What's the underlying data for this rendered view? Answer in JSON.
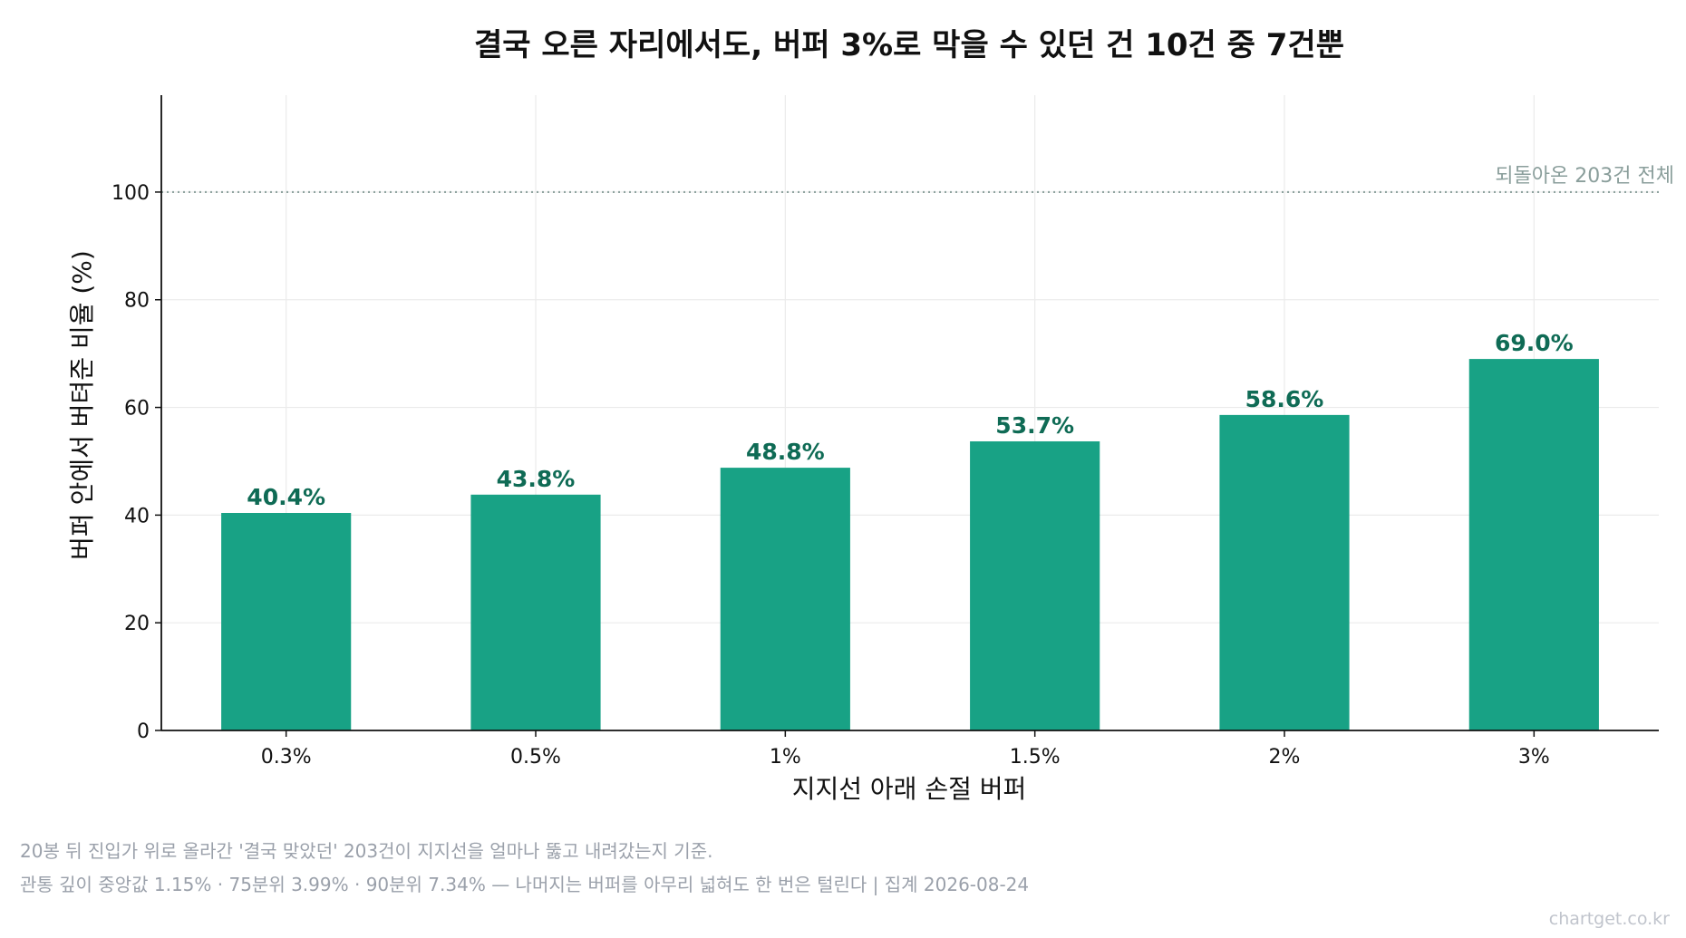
{
  "chart_data": {
    "type": "bar",
    "title": "결국 오른 자리에서도, 버퍼 3%로 막을 수 있던 건 10건 중 7건뿐",
    "xlabel": "지지선 아래 손절 버퍼",
    "ylabel": "버퍼 안에서 버텨준 비율 (%)",
    "categories": [
      "0.3%",
      "0.5%",
      "1%",
      "1.5%",
      "2%",
      "3%"
    ],
    "values": [
      40.4,
      43.8,
      48.8,
      53.7,
      58.6,
      69.0
    ],
    "data_labels": [
      "40.4%",
      "43.8%",
      "48.8%",
      "53.7%",
      "58.6%",
      "69.0%"
    ],
    "ylim": [
      0,
      118
    ],
    "yticks": [
      0,
      20,
      40,
      60,
      80,
      100
    ],
    "grid": true,
    "reference_line": {
      "value": 100,
      "label": "되돌아온 203건 전체",
      "style": "dotted"
    },
    "bar_color": "#18a285",
    "label_color": "#0f6b55"
  },
  "footnotes": [
    "20봉 뒤 진입가 위로 올라간 '결국 맞았던' 203건이 지지선을 얼마나 뚫고 내려갔는지 기준.",
    "관통 깊이 중앙값 1.15% · 75분위 3.99% · 90분위 7.34% — 나머지는 버퍼를 아무리 넓혀도 한 번은 털린다  |  집계 2026-08-24"
  ],
  "watermark": "chartget.co.kr"
}
